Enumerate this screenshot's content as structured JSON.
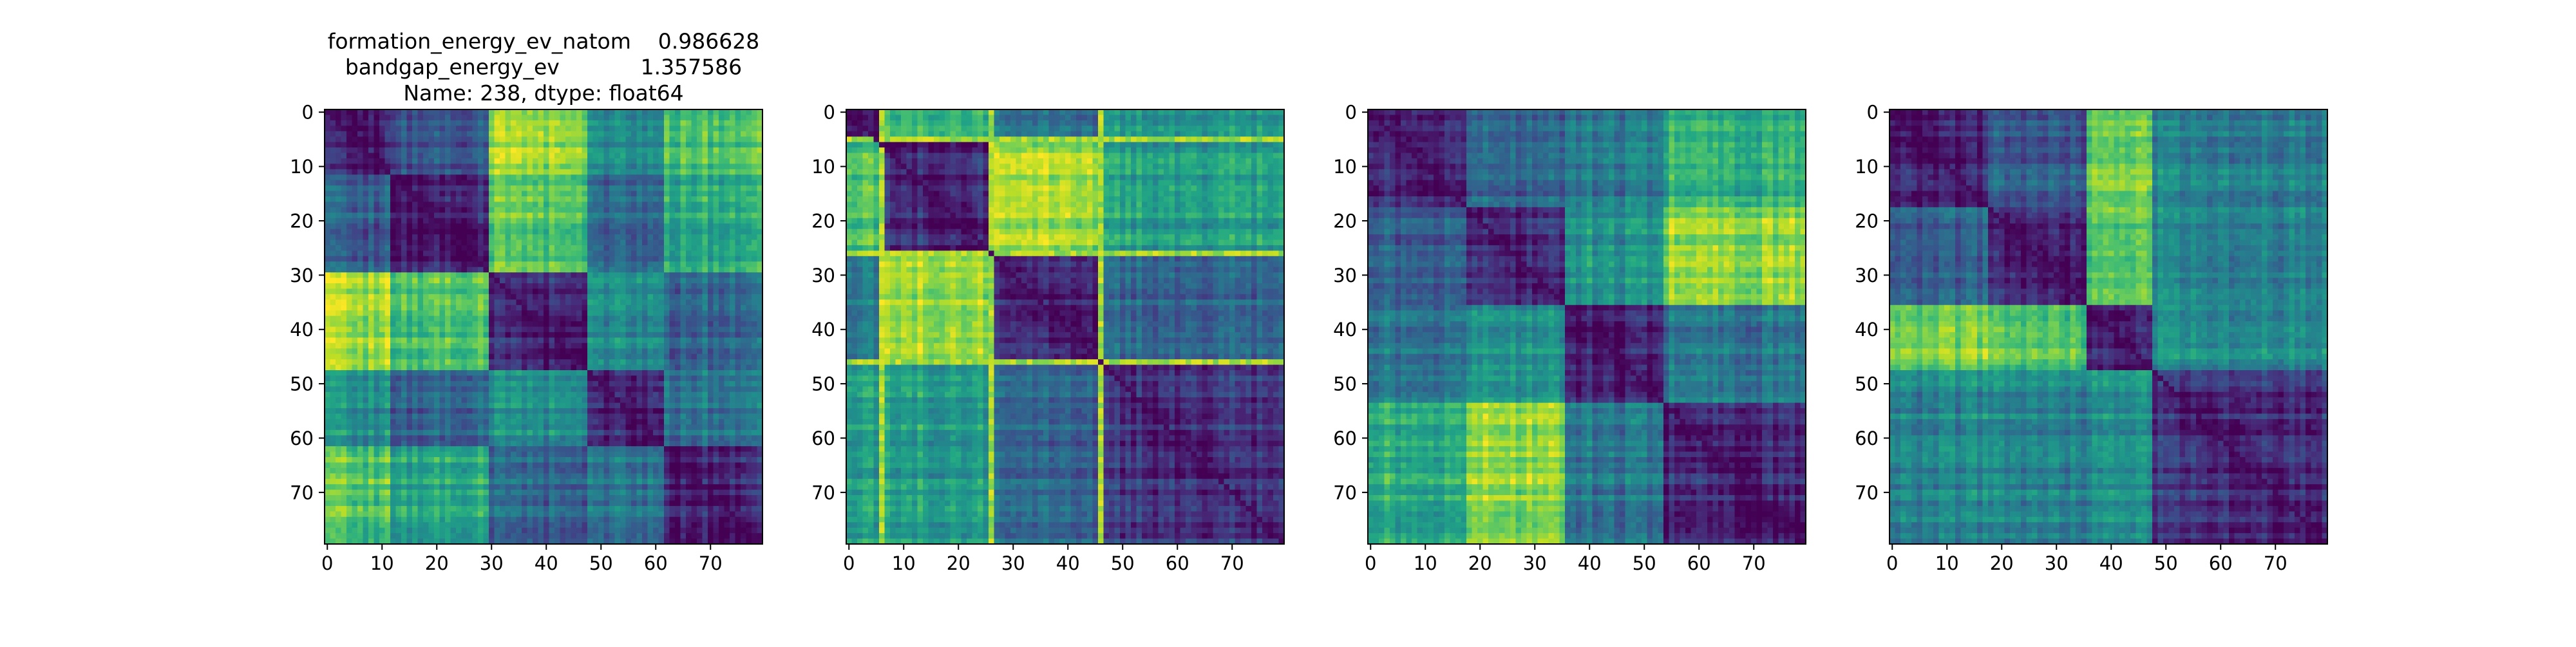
{
  "chart_data": [
    {
      "type": "heatmap",
      "title_lines": [
        "formation_energy_ev_natom    0.986628",
        "bandgap_energy_ev            1.357586",
        "Name: 238, dtype: float64"
      ],
      "rows": 80,
      "cols": 80,
      "xticks": [
        0,
        10,
        20,
        30,
        40,
        50,
        60,
        70
      ],
      "yticks": [
        0,
        10,
        20,
        30,
        40,
        50,
        60,
        70
      ],
      "colormap": "viridis",
      "blocks": [
        0,
        12,
        30,
        48,
        62,
        80
      ],
      "block_values": [
        [
          0.1,
          0.28,
          0.85,
          0.48,
          0.72
        ],
        [
          0.28,
          0.1,
          0.72,
          0.32,
          0.6
        ],
        [
          0.85,
          0.72,
          0.12,
          0.48,
          0.32
        ],
        [
          0.48,
          0.32,
          0.48,
          0.12,
          0.38
        ],
        [
          0.72,
          0.6,
          0.32,
          0.38,
          0.12
        ]
      ]
    },
    {
      "type": "heatmap",
      "rows": 80,
      "cols": 80,
      "xticks": [
        0,
        10,
        20,
        30,
        40,
        50,
        60,
        70
      ],
      "yticks": [
        0,
        10,
        20,
        30,
        40,
        50,
        60,
        70
      ],
      "colormap": "viridis",
      "blocks": [
        0,
        6,
        26,
        46,
        80
      ],
      "block_values": [
        [
          0.12,
          0.7,
          0.4,
          0.55
        ],
        [
          0.7,
          0.12,
          0.85,
          0.55
        ],
        [
          0.4,
          0.85,
          0.12,
          0.32
        ],
        [
          0.55,
          0.55,
          0.32,
          0.15
        ]
      ],
      "bright_rows": [
        5,
        26,
        46
      ],
      "bright_cols": [
        6,
        26,
        46
      ]
    },
    {
      "type": "heatmap",
      "rows": 80,
      "cols": 80,
      "xticks": [
        0,
        10,
        20,
        30,
        40,
        50,
        60,
        70
      ],
      "yticks": [
        0,
        10,
        20,
        30,
        40,
        50,
        60,
        70
      ],
      "colormap": "viridis",
      "blocks": [
        0,
        18,
        36,
        54,
        80
      ],
      "block_values": [
        [
          0.12,
          0.3,
          0.4,
          0.62
        ],
        [
          0.3,
          0.12,
          0.5,
          0.82
        ],
        [
          0.4,
          0.5,
          0.12,
          0.4
        ],
        [
          0.62,
          0.82,
          0.4,
          0.12
        ]
      ]
    },
    {
      "type": "heatmap",
      "rows": 80,
      "cols": 80,
      "xticks": [
        0,
        10,
        20,
        30,
        40,
        50,
        60,
        70
      ],
      "yticks": [
        0,
        10,
        20,
        30,
        40,
        50,
        60,
        70
      ],
      "colormap": "viridis",
      "blocks": [
        0,
        18,
        36,
        48,
        80
      ],
      "block_values": [
        [
          0.12,
          0.3,
          0.78,
          0.45
        ],
        [
          0.3,
          0.12,
          0.72,
          0.45
        ],
        [
          0.78,
          0.72,
          0.1,
          0.48
        ],
        [
          0.45,
          0.45,
          0.48,
          0.15
        ]
      ]
    }
  ]
}
